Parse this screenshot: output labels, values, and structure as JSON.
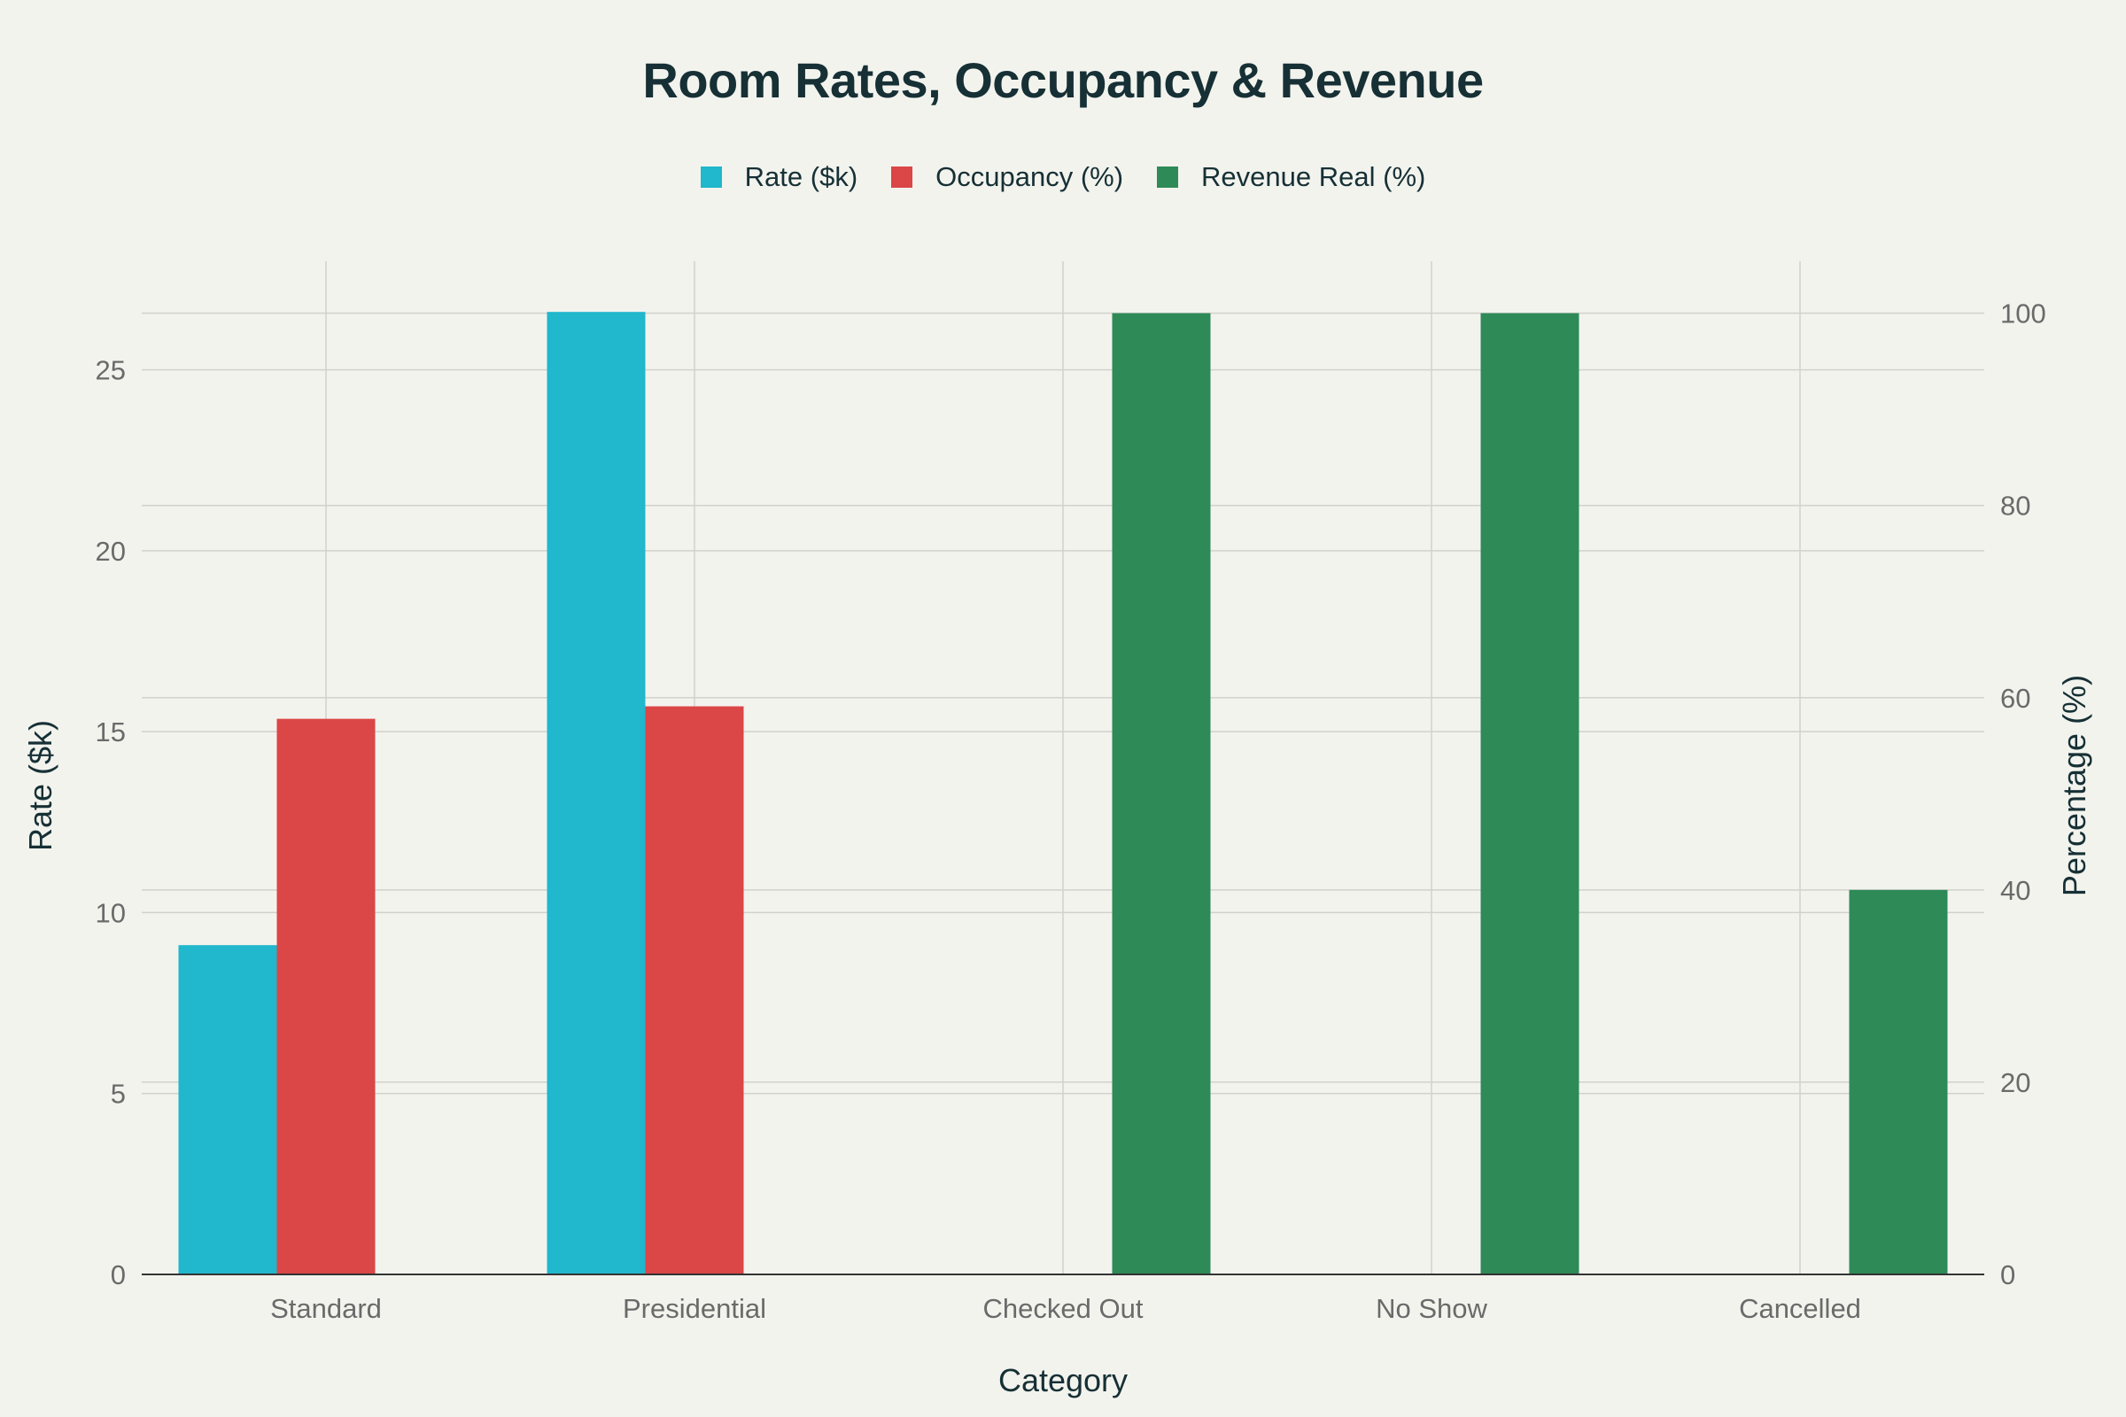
{
  "chart_data": {
    "type": "bar",
    "title": "Room Rates, Occupancy & Revenue",
    "xlabel": "Category",
    "ylabel": "Rate ($k)",
    "y2label": "Percentage (%)",
    "categories": [
      "Standard",
      "Presidential",
      "Checked Out",
      "No Show",
      "Cancelled"
    ],
    "ylim": [
      0,
      28
    ],
    "y2lim": [
      0,
      105.4
    ],
    "yticks": [
      0,
      5,
      10,
      15,
      20,
      25
    ],
    "y2ticks": [
      0,
      20,
      40,
      60,
      80,
      100
    ],
    "grid": true,
    "legend_position": "top-center",
    "series": [
      {
        "name": "Rate ($k)",
        "axis": "left",
        "color": "#21b7cc",
        "values": [
          9.1,
          26.6,
          null,
          null,
          null
        ]
      },
      {
        "name": "Occupancy (%)",
        "axis": "right",
        "color": "#db4646",
        "values": [
          57.8,
          59.1,
          null,
          null,
          null
        ]
      },
      {
        "name": "Revenue Real (%)",
        "axis": "right",
        "color": "#2e8a57",
        "values": [
          null,
          null,
          100,
          100,
          40
        ]
      }
    ]
  }
}
